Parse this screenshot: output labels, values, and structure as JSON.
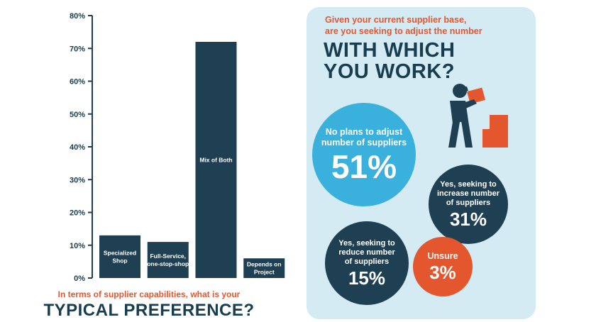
{
  "chart_data": {
    "type": "bar",
    "categories": [
      "Specialized Shop",
      "Full-Service, one-stop-shop",
      "Mix of Both",
      "Depends on Project"
    ],
    "category_labels": [
      [
        "Specialized",
        "Shop"
      ],
      [
        "Full-Service,",
        "one-stop-shop"
      ],
      [
        "Mix of Both"
      ],
      [
        "Depends on",
        "Project"
      ]
    ],
    "values": [
      13,
      11,
      72,
      6
    ],
    "ylim": [
      0,
      80
    ],
    "yticks": [
      "0%",
      "10%",
      "20%",
      "30%",
      "40%",
      "50%",
      "60%",
      "70%",
      "80%"
    ],
    "xlabel": "",
    "ylabel": "",
    "title": "",
    "colors": {
      "bar": "#1f3f52",
      "axis": "#1f3f52",
      "tick_text": "#173d4f"
    }
  },
  "left_question": {
    "line1": "In terms of supplier capabilities, what is your",
    "line2": "TYPICAL PREFERENCE?"
  },
  "right_panel": {
    "question_line1": "Given your current supplier base,",
    "question_line2": "are you seeking to adjust the number",
    "headline_line1": "WITH WHICH",
    "headline_line2": "YOU WORK?",
    "results": [
      {
        "label_lines": [
          "No plans to adjust",
          "number of suppliers"
        ],
        "value": "51%",
        "color": "#3ab0dc"
      },
      {
        "label_lines": [
          "Yes, seeking to",
          "increase number",
          "of suppliers"
        ],
        "value": "31%",
        "color": "#1f3f52"
      },
      {
        "label_lines": [
          "Yes, seeking to",
          "reduce number",
          "of suppliers"
        ],
        "value": "15%",
        "color": "#1f3f52"
      },
      {
        "label_lines": [
          "Unsure"
        ],
        "value": "3%",
        "color": "#e4572e"
      }
    ],
    "icon": "worker-lifting-boxes-icon"
  },
  "colors": {
    "accent": "#e4572e",
    "navy": "#173d4f",
    "panel_bg": "#d4ebf3",
    "light_blue": "#3ab0dc"
  }
}
